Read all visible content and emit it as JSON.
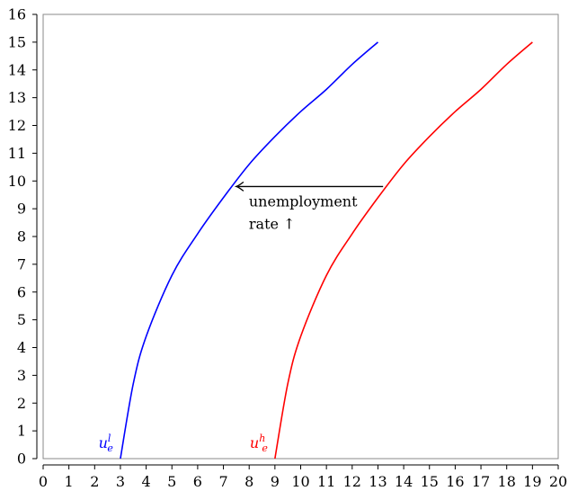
{
  "chart_data": {
    "type": "line",
    "title": "",
    "xlabel": "",
    "ylabel": "",
    "xlim": [
      0,
      20
    ],
    "ylim": [
      0,
      16
    ],
    "x_ticks": [
      "0",
      "1",
      "2",
      "3",
      "4",
      "5",
      "6",
      "7",
      "8",
      "9",
      "10",
      "11",
      "12",
      "13",
      "14",
      "15",
      "16",
      "17",
      "18",
      "19",
      "20"
    ],
    "y_ticks": [
      "0",
      "1",
      "2",
      "3",
      "4",
      "5",
      "6",
      "7",
      "8",
      "9",
      "10",
      "11",
      "12",
      "13",
      "14",
      "15",
      "16"
    ],
    "grid": false,
    "series": [
      {
        "name": "u_e^l",
        "label_base": "u",
        "label_sub": "e",
        "label_sup": "l",
        "color": "#0000ff",
        "x": [
          3.0,
          3.5,
          4.0,
          5.0,
          6.0,
          7.0,
          8.0,
          9.0,
          10.0,
          11.0,
          12.0,
          13.0
        ],
        "y": [
          0.0,
          2.7,
          4.4,
          6.6,
          8.1,
          9.4,
          10.6,
          11.6,
          12.5,
          13.3,
          14.2,
          15.0
        ]
      },
      {
        "name": "u_e^h",
        "label_base": "u",
        "label_sub": "e",
        "label_sup": "h",
        "color": "#ff0000",
        "x": [
          9.0,
          9.5,
          10.0,
          11.0,
          12.0,
          13.0,
          14.0,
          15.0,
          16.0,
          17.0,
          18.0,
          19.0
        ],
        "y": [
          0.0,
          2.7,
          4.4,
          6.6,
          8.1,
          9.4,
          10.6,
          11.6,
          12.5,
          13.3,
          14.2,
          15.0
        ]
      }
    ],
    "annotations": [
      {
        "line1": "unemployment",
        "line2": "rate ↑",
        "arrow_from": [
          13.2,
          9.8
        ],
        "arrow_to": [
          7.5,
          9.8
        ]
      }
    ]
  }
}
